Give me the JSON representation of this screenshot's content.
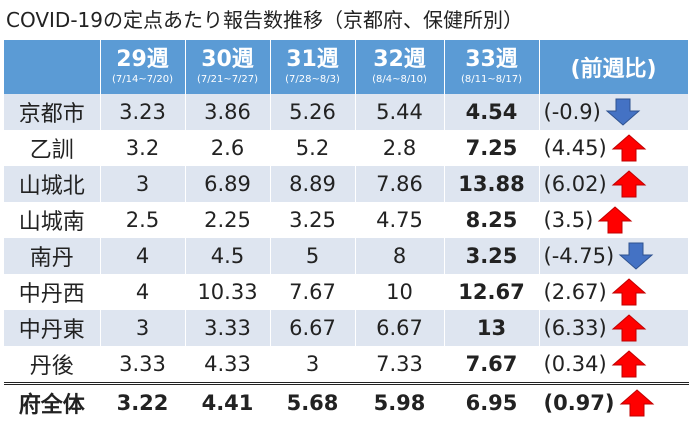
{
  "title": "COVID-19の定点あたり報告数推移（京都府、保健所別）",
  "table": {
    "columns": [
      {
        "week": "29週",
        "range": "(7/14~7/20)"
      },
      {
        "week": "30週",
        "range": "(7/21~7/27)"
      },
      {
        "week": "31週",
        "range": "(7/28~8/3)"
      },
      {
        "week": "32週",
        "range": "(8/4~8/10)"
      },
      {
        "week": "33週",
        "range": "(8/11~8/17)"
      }
    ],
    "change_header": "(前週比)",
    "rows": [
      {
        "name": "京都市",
        "values": [
          3.23,
          3.86,
          5.26,
          5.44,
          4.54
        ],
        "change": "(-0.9)"
      },
      {
        "name": "乙訓",
        "values": [
          3.2,
          2.6,
          5.2,
          2.8,
          7.25
        ],
        "change": "(4.45)"
      },
      {
        "name": "山城北",
        "values": [
          3,
          6.89,
          8.89,
          7.86,
          13.88
        ],
        "change": "(6.02)"
      },
      {
        "name": "山城南",
        "values": [
          2.5,
          2.25,
          3.25,
          4.75,
          8.25
        ],
        "change": "(3.5)"
      },
      {
        "name": "南丹",
        "values": [
          4,
          4.5,
          5,
          8,
          3.25
        ],
        "change": "(-4.75)"
      },
      {
        "name": "中丹西",
        "values": [
          4,
          10.33,
          7.67,
          10,
          12.67
        ],
        "change": "(2.67)"
      },
      {
        "name": "中丹東",
        "values": [
          3,
          3.33,
          6.67,
          6.67,
          13
        ],
        "change": "(6.33)"
      },
      {
        "name": "丹後",
        "values": [
          3.33,
          4.33,
          3,
          7.33,
          7.67
        ],
        "change": "(0.34)"
      }
    ],
    "total": {
      "name": "府全体",
      "values": [
        3.22,
        4.41,
        5.68,
        5.98,
        6.95
      ],
      "change": "(0.97)"
    }
  }
}
